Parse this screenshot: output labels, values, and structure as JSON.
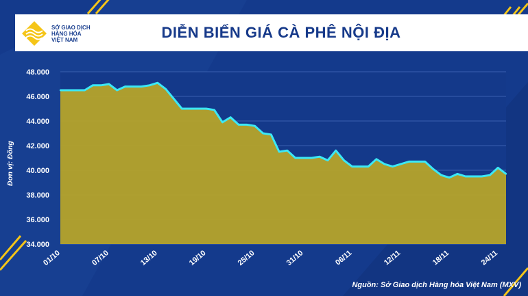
{
  "header": {
    "logo_line1": "SỞ GIAO DỊCH",
    "logo_line2": "HÀNG HÓA",
    "logo_line3": "VIỆT NAM",
    "title": "DIỄN BIẾN GIÁ CÀ PHÊ NỘI ĐỊA"
  },
  "source": "Nguồn: Sở Giao dịch Hàng hóa Việt Nam (MXV)",
  "colors": {
    "background": "#143a8c",
    "area_fill": "#b5a32a",
    "line": "#3ce8f5",
    "accent_yellow": "#f5c518"
  },
  "chart_data": {
    "type": "area",
    "title": "DIỄN BIẾN GIÁ CÀ PHÊ NỘI ĐỊA",
    "xlabel": "",
    "ylabel": "Đơn vị: Đồng",
    "ylim": [
      34000,
      48000
    ],
    "yticks": [
      "34.000",
      "36.000",
      "38.000",
      "40.000",
      "42.000",
      "44.000",
      "46.000",
      "48.000"
    ],
    "xtick_labels": [
      "01/10",
      "07/10",
      "13/10",
      "19/10",
      "25/10",
      "31/10",
      "06/11",
      "12/11",
      "18/11",
      "24/11"
    ],
    "grid": true,
    "x": [
      "01/10",
      "02/10",
      "03/10",
      "04/10",
      "05/10",
      "06/10",
      "07/10",
      "08/10",
      "09/10",
      "10/10",
      "11/10",
      "12/10",
      "13/10",
      "14/10",
      "15/10",
      "16/10",
      "17/10",
      "18/10",
      "19/10",
      "20/10",
      "21/10",
      "22/10",
      "23/10",
      "24/10",
      "25/10",
      "26/10",
      "27/10",
      "28/10",
      "29/10",
      "30/10",
      "31/10",
      "01/11",
      "02/11",
      "03/11",
      "04/11",
      "05/11",
      "06/11",
      "07/11",
      "08/11",
      "09/11",
      "10/11",
      "11/11",
      "12/11",
      "13/11",
      "14/11",
      "15/11",
      "16/11",
      "17/11",
      "18/11",
      "19/11",
      "20/11",
      "21/11",
      "22/11",
      "23/11",
      "24/11",
      "25/11"
    ],
    "values": [
      46500,
      46500,
      46500,
      46500,
      46900,
      46900,
      47000,
      46500,
      46800,
      46800,
      46800,
      46900,
      47100,
      46600,
      45800,
      45000,
      45000,
      45000,
      45000,
      44900,
      43900,
      44300,
      43700,
      43700,
      43600,
      43000,
      42900,
      41500,
      41600,
      41000,
      41000,
      41000,
      41100,
      40800,
      41600,
      40800,
      40300,
      40300,
      40300,
      40900,
      40500,
      40300,
      40500,
      40700,
      40700,
      40700,
      40100,
      39600,
      39400,
      39700,
      39500,
      39500,
      39500,
      39600,
      40200,
      39700
    ]
  }
}
